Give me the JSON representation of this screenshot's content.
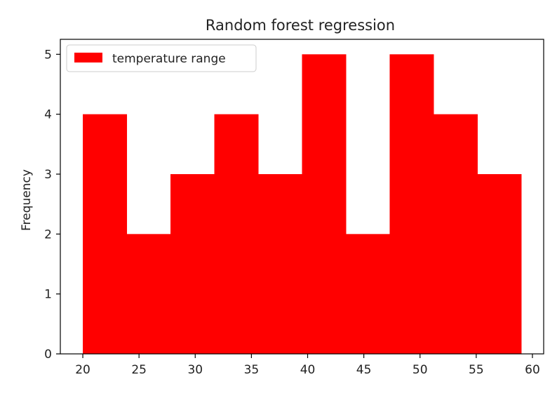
{
  "chart_data": {
    "type": "bar",
    "title": "Random forest regression",
    "xlabel": "",
    "ylabel": "Frequency",
    "bin_edges": [
      20.0,
      23.9,
      27.8,
      31.7,
      35.6,
      39.5,
      43.4,
      47.3,
      51.2,
      55.1,
      59.0
    ],
    "series": [
      {
        "name": "temperature range",
        "values": [
          4,
          2,
          3,
          4,
          3,
          5,
          2,
          5,
          4,
          3
        ]
      }
    ],
    "xlim": [
      18,
      61
    ],
    "ylim": [
      0,
      5.25
    ],
    "xticks": [
      "20",
      "25",
      "30",
      "35",
      "40",
      "45",
      "50",
      "55",
      "60"
    ],
    "yticks": [
      "0",
      "1",
      "2",
      "3",
      "4",
      "5"
    ],
    "colors": {
      "bar": "#ff0000",
      "axes": "#000000"
    },
    "grid": false,
    "legend_position": "upper left"
  }
}
